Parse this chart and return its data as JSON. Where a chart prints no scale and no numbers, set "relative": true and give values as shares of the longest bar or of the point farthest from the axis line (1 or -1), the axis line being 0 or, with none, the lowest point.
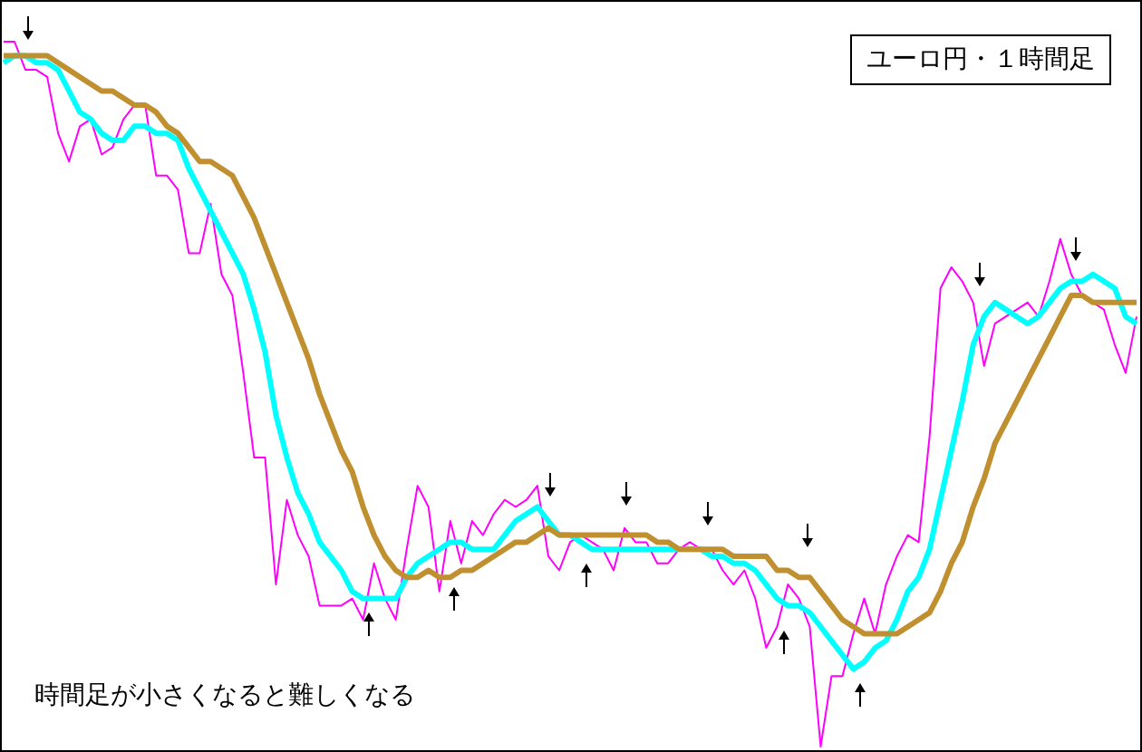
{
  "chart_data": {
    "type": "line",
    "title": "ユーロ円・１時間足",
    "annotations": [
      "時間足が小さくなると難しくなる"
    ],
    "relative": true,
    "grid": false,
    "legend": false,
    "marker": "none",
    "line_style": "solid",
    "categories": [
      null,
      null,
      null,
      null,
      null,
      null,
      null,
      null,
      null,
      null,
      null,
      null,
      null,
      null,
      null,
      null,
      null,
      null,
      null,
      null,
      null,
      null,
      null,
      null,
      null,
      null,
      null,
      null,
      null,
      null,
      null,
      null,
      null,
      null,
      null,
      null,
      null,
      null,
      null,
      null,
      null,
      null,
      null,
      null,
      null,
      null,
      null,
      null,
      null,
      null,
      null,
      null,
      null,
      null,
      null,
      null,
      null,
      null,
      null,
      null,
      null,
      null,
      null,
      null,
      null,
      null,
      null,
      null,
      null,
      null,
      null,
      null,
      null,
      null,
      null,
      null,
      null,
      null,
      null,
      null,
      null,
      null,
      null,
      null,
      null,
      null,
      null,
      null,
      null,
      null,
      null,
      null,
      null,
      null,
      null,
      null,
      null,
      null,
      null,
      null,
      null,
      null,
      null,
      null,
      null
    ],
    "series": [
      {
        "color": "#ff00ff",
        "values": [
          1.0,
          1.0,
          0.96,
          0.96,
          0.95,
          0.87,
          0.83,
          0.88,
          0.89,
          0.84,
          0.85,
          0.89,
          0.91,
          0.91,
          0.81,
          0.81,
          0.79,
          0.7,
          0.7,
          0.77,
          0.67,
          0.64,
          0.53,
          0.41,
          0.41,
          0.23,
          0.35,
          0.3,
          0.27,
          0.2,
          0.2,
          0.2,
          0.21,
          0.18,
          0.26,
          0.21,
          0.18,
          0.28,
          0.37,
          0.34,
          0.22,
          0.32,
          0.26,
          0.32,
          0.3,
          0.33,
          0.35,
          0.34,
          0.35,
          0.37,
          0.27,
          0.25,
          0.29,
          0.3,
          0.29,
          0.28,
          0.25,
          0.31,
          0.29,
          0.29,
          0.26,
          0.26,
          0.28,
          0.29,
          0.28,
          0.28,
          0.25,
          0.23,
          0.25,
          0.21,
          0.14,
          0.17,
          0.23,
          0.21,
          0.17,
          0.0,
          0.1,
          0.1,
          0.16,
          0.21,
          0.16,
          0.23,
          0.27,
          0.3,
          0.29,
          0.44,
          0.65,
          0.68,
          0.66,
          0.63,
          0.54,
          0.6,
          0.61,
          0.62,
          0.63,
          0.61,
          0.66,
          0.72,
          0.67,
          0.64,
          0.63,
          0.62,
          0.57,
          0.53,
          0.61
        ]
      },
      {
        "color": "#00ffff",
        "values": [
          0.97,
          0.98,
          0.98,
          0.97,
          0.97,
          0.96,
          0.93,
          0.9,
          0.89,
          0.87,
          0.86,
          0.86,
          0.88,
          0.88,
          0.87,
          0.87,
          0.86,
          0.82,
          0.79,
          0.76,
          0.73,
          0.7,
          0.67,
          0.62,
          0.56,
          0.47,
          0.41,
          0.36,
          0.33,
          0.29,
          0.27,
          0.25,
          0.22,
          0.21,
          0.21,
          0.21,
          0.21,
          0.24,
          0.26,
          0.27,
          0.28,
          0.29,
          0.29,
          0.28,
          0.28,
          0.28,
          0.3,
          0.32,
          0.33,
          0.34,
          0.32,
          0.3,
          0.3,
          0.29,
          0.28,
          0.28,
          0.28,
          0.28,
          0.28,
          0.28,
          0.28,
          0.28,
          0.28,
          0.28,
          0.28,
          0.27,
          0.27,
          0.26,
          0.26,
          0.25,
          0.23,
          0.21,
          0.2,
          0.2,
          0.19,
          0.17,
          0.15,
          0.13,
          0.11,
          0.12,
          0.14,
          0.15,
          0.18,
          0.22,
          0.24,
          0.28,
          0.35,
          0.42,
          0.49,
          0.57,
          0.61,
          0.63,
          0.62,
          0.61,
          0.6,
          0.61,
          0.63,
          0.65,
          0.66,
          0.66,
          0.67,
          0.66,
          0.65,
          0.61,
          0.6
        ]
      },
      {
        "color": "#c09030",
        "values": [
          0.98,
          0.98,
          0.98,
          0.98,
          0.98,
          0.97,
          0.96,
          0.95,
          0.94,
          0.93,
          0.93,
          0.92,
          0.91,
          0.91,
          0.9,
          0.88,
          0.87,
          0.85,
          0.83,
          0.83,
          0.82,
          0.81,
          0.78,
          0.75,
          0.71,
          0.67,
          0.63,
          0.59,
          0.55,
          0.5,
          0.46,
          0.42,
          0.39,
          0.34,
          0.3,
          0.27,
          0.25,
          0.24,
          0.24,
          0.25,
          0.24,
          0.24,
          0.25,
          0.25,
          0.26,
          0.27,
          0.28,
          0.29,
          0.29,
          0.3,
          0.31,
          0.3,
          0.3,
          0.3,
          0.3,
          0.3,
          0.3,
          0.3,
          0.3,
          0.3,
          0.29,
          0.29,
          0.28,
          0.28,
          0.28,
          0.28,
          0.28,
          0.27,
          0.27,
          0.27,
          0.27,
          0.25,
          0.25,
          0.24,
          0.24,
          0.22,
          0.2,
          0.18,
          0.17,
          0.16,
          0.16,
          0.16,
          0.16,
          0.17,
          0.18,
          0.19,
          0.22,
          0.26,
          0.29,
          0.34,
          0.38,
          0.43,
          0.46,
          0.49,
          0.52,
          0.55,
          0.58,
          0.61,
          0.64,
          0.64,
          0.63,
          0.63,
          0.63,
          0.63,
          0.63
        ]
      }
    ]
  }
}
